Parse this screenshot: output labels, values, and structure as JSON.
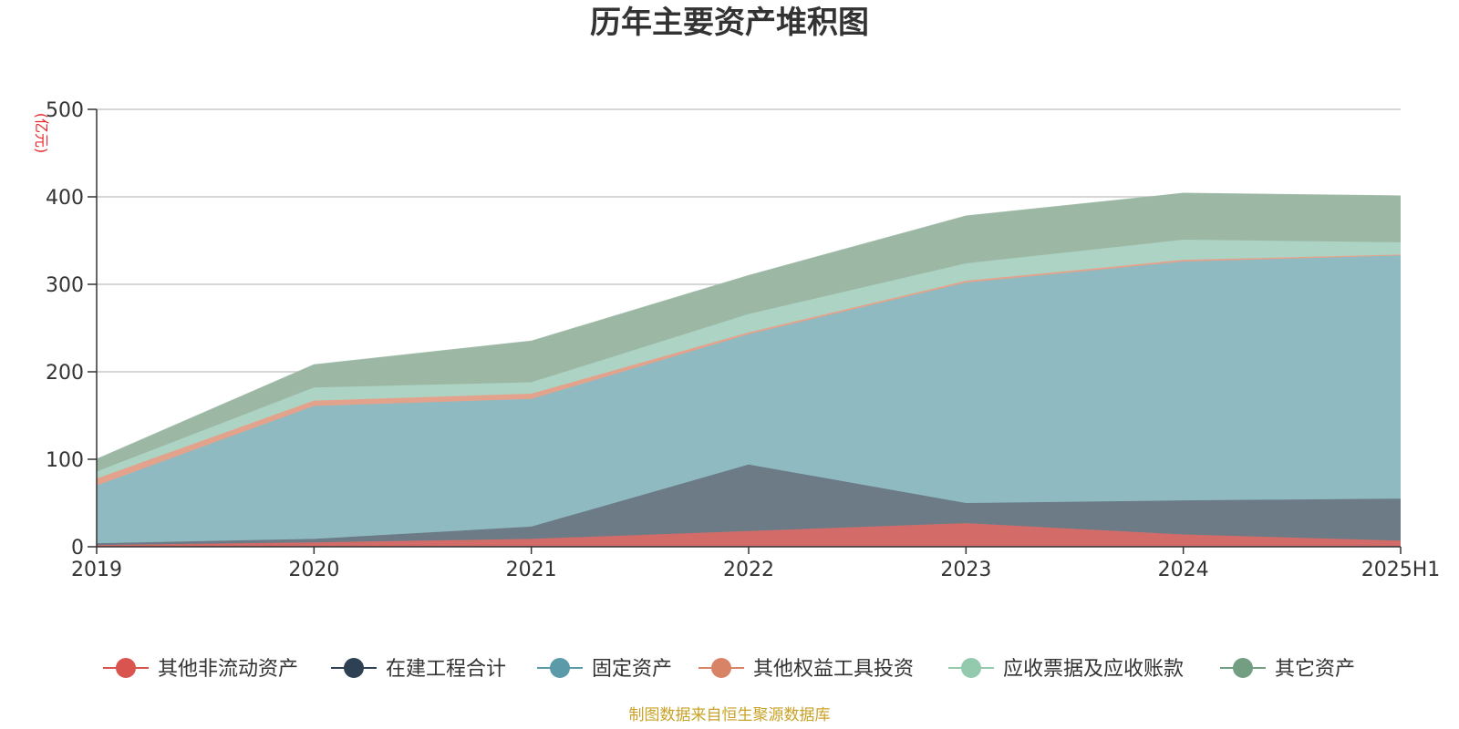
{
  "chart_data": {
    "type": "area",
    "stacked": true,
    "title": "历年主要资产堆积图",
    "unit_label": "(亿元)",
    "categories": [
      "2019",
      "2020",
      "2021",
      "2022",
      "2023",
      "2024",
      "2025H1"
    ],
    "ylim": [
      0,
      500
    ],
    "yticks": [
      "0",
      "100",
      "200",
      "300",
      "400",
      "500"
    ],
    "grid": true,
    "legend_position": "bottom",
    "series": [
      {
        "name": "其他非流动资产",
        "color": "#d9534f",
        "fill": "#d36b69",
        "values": [
          2,
          5,
          9,
          18,
          27,
          14,
          7
        ]
      },
      {
        "name": "在建工程合计",
        "color": "#2e4053",
        "fill": "#6c7b86",
        "values": [
          2,
          4,
          14,
          76,
          23,
          39,
          48
        ]
      },
      {
        "name": "固定资产",
        "color": "#5b9aa9",
        "fill": "#8fbac1",
        "values": [
          66,
          152,
          146,
          149,
          252,
          273,
          278
        ]
      },
      {
        "name": "其他权益工具投资",
        "color": "#d98366",
        "fill": "#e3a28c",
        "values": [
          8,
          6,
          6,
          2,
          2,
          2,
          1
        ]
      },
      {
        "name": "应收票据及应收账款",
        "color": "#93c9ad",
        "fill": "#acd3c3",
        "values": [
          8,
          15,
          13,
          21,
          20,
          23,
          14
        ]
      },
      {
        "name": "其它资产",
        "color": "#739e82",
        "fill": "#9cb8a5",
        "values": [
          14,
          26,
          47,
          44,
          54,
          53,
          53
        ]
      }
    ]
  },
  "source_note": "制图数据来自恒生聚源数据库"
}
